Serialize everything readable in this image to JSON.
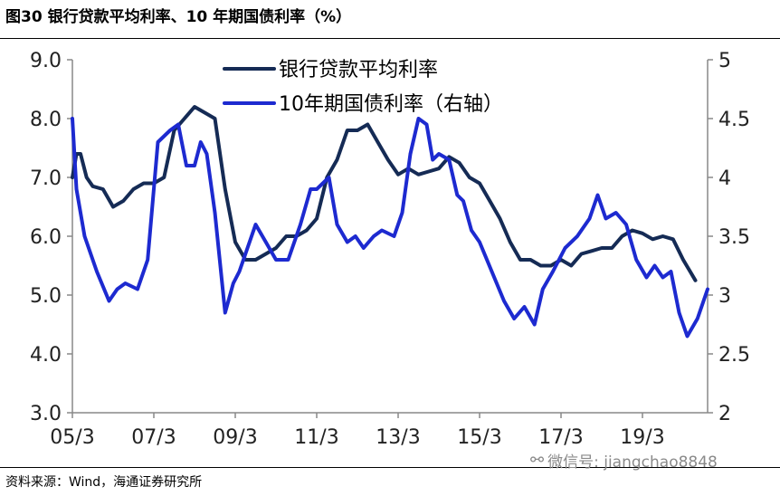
{
  "header": {
    "title": "图30 银行贷款平均利率、10 年期国债利率（%）"
  },
  "footer": {
    "source": "资料来源：Wind，海通证券研究所",
    "watermark": "微信号: jiangchao8848",
    "watermark_icon": "wechat-icon"
  },
  "colors": {
    "loan_rate": "#152b55",
    "bond_yield": "#1d2ad0",
    "axis": "#888888"
  },
  "chart_data": {
    "type": "line",
    "title": "",
    "legend_position": "top-center",
    "grid": false,
    "x": {
      "ticks": [
        "05/3",
        "07/3",
        "09/3",
        "11/3",
        "13/3",
        "15/3",
        "17/3",
        "19/3"
      ],
      "tick_values": [
        2005.0,
        2007.0,
        2009.0,
        2011.0,
        2013.0,
        2015.0,
        2017.0,
        2019.0
      ],
      "range": [
        2005.0,
        2020.6
      ]
    },
    "y_left": {
      "range": [
        3.0,
        9.0
      ],
      "ticks": [
        "3.0",
        "4.0",
        "5.0",
        "6.0",
        "7.0",
        "8.0",
        "9.0"
      ]
    },
    "y_right": {
      "range": [
        2,
        5
      ],
      "ticks": [
        "2",
        "2.5",
        "3",
        "3.5",
        "4",
        "4.5",
        "5"
      ]
    },
    "series": [
      {
        "name": "银行贷款平均利率",
        "axis": "left",
        "x": [
          2005.0,
          2005.1,
          2005.2,
          2005.35,
          2005.5,
          2005.75,
          2006.0,
          2006.25,
          2006.5,
          2006.75,
          2007.0,
          2007.25,
          2007.5,
          2007.75,
          2008.0,
          2008.25,
          2008.5,
          2008.75,
          2009.0,
          2009.25,
          2009.5,
          2009.75,
          2010.0,
          2010.25,
          2010.5,
          2010.75,
          2011.0,
          2011.25,
          2011.5,
          2011.75,
          2012.0,
          2012.25,
          2012.5,
          2012.75,
          2013.0,
          2013.25,
          2013.5,
          2013.75,
          2014.0,
          2014.25,
          2014.5,
          2014.75,
          2015.0,
          2015.25,
          2015.5,
          2015.75,
          2016.0,
          2016.25,
          2016.5,
          2016.75,
          2017.0,
          2017.25,
          2017.5,
          2017.75,
          2018.0,
          2018.25,
          2018.5,
          2018.75,
          2019.0,
          2019.25,
          2019.5,
          2019.75,
          2020.0,
          2020.3
        ],
        "values": [
          7.0,
          7.4,
          7.4,
          7.0,
          6.85,
          6.8,
          6.5,
          6.6,
          6.8,
          6.9,
          6.9,
          7.0,
          7.8,
          8.0,
          8.2,
          8.1,
          8.0,
          6.8,
          5.9,
          5.6,
          5.6,
          5.7,
          5.8,
          6.0,
          6.0,
          6.1,
          6.3,
          7.0,
          7.3,
          7.8,
          7.8,
          7.9,
          7.6,
          7.3,
          7.05,
          7.15,
          7.05,
          7.1,
          7.15,
          7.35,
          7.25,
          7.0,
          6.9,
          6.6,
          6.3,
          5.9,
          5.6,
          5.6,
          5.5,
          5.5,
          5.6,
          5.5,
          5.7,
          5.75,
          5.8,
          5.8,
          6.0,
          6.1,
          6.05,
          5.95,
          6.0,
          5.95,
          5.6,
          5.25
        ]
      },
      {
        "name": "10年期国债利率（右轴）",
        "axis": "right",
        "x": [
          2005.0,
          2005.1,
          2005.3,
          2005.6,
          2005.9,
          2006.1,
          2006.3,
          2006.6,
          2006.85,
          2007.1,
          2007.4,
          2007.6,
          2007.8,
          2008.0,
          2008.15,
          2008.3,
          2008.5,
          2008.75,
          2008.95,
          2009.1,
          2009.3,
          2009.5,
          2009.75,
          2010.0,
          2010.3,
          2010.6,
          2010.85,
          2011.0,
          2011.3,
          2011.5,
          2011.75,
          2011.95,
          2012.15,
          2012.4,
          2012.6,
          2012.9,
          2013.1,
          2013.3,
          2013.5,
          2013.7,
          2013.85,
          2014.0,
          2014.25,
          2014.45,
          2014.6,
          2014.8,
          2015.0,
          2015.3,
          2015.6,
          2015.85,
          2016.1,
          2016.35,
          2016.55,
          2016.8,
          2017.1,
          2017.4,
          2017.7,
          2017.9,
          2018.1,
          2018.35,
          2018.6,
          2018.85,
          2019.1,
          2019.3,
          2019.5,
          2019.7,
          2019.9,
          2020.1,
          2020.35,
          2020.6
        ],
        "values": [
          4.5,
          3.9,
          3.5,
          3.2,
          2.95,
          3.05,
          3.1,
          3.05,
          3.3,
          4.3,
          4.4,
          4.45,
          4.1,
          4.1,
          4.3,
          4.2,
          3.7,
          2.85,
          3.1,
          3.2,
          3.4,
          3.6,
          3.45,
          3.3,
          3.3,
          3.6,
          3.9,
          3.9,
          4.0,
          3.6,
          3.45,
          3.5,
          3.4,
          3.5,
          3.55,
          3.5,
          3.7,
          4.2,
          4.5,
          4.45,
          4.15,
          4.2,
          4.15,
          3.85,
          3.8,
          3.55,
          3.45,
          3.2,
          2.95,
          2.8,
          2.9,
          2.75,
          3.05,
          3.2,
          3.4,
          3.5,
          3.65,
          3.85,
          3.65,
          3.7,
          3.6,
          3.3,
          3.15,
          3.25,
          3.15,
          3.2,
          2.85,
          2.65,
          2.8,
          3.05
        ]
      }
    ]
  }
}
